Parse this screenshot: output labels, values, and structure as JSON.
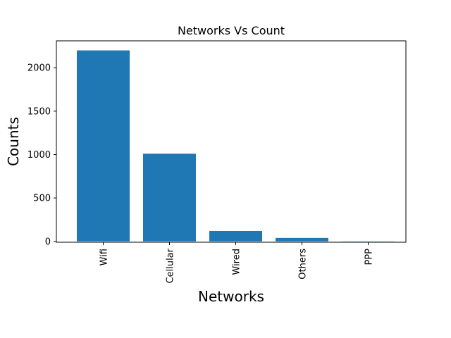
{
  "chart_data": {
    "type": "bar",
    "title": "Networks Vs Count",
    "xlabel": "Networks",
    "ylabel": "Counts",
    "categories": [
      "Wifi",
      "Cellular",
      "Wired",
      "Others",
      "PPP"
    ],
    "values": [
      2200,
      1010,
      120,
      40,
      2
    ],
    "ylim": [
      -10,
      2310
    ],
    "yticks": [
      0,
      500,
      1000,
      1500,
      2000
    ],
    "grid": false,
    "bar_color": "#1f77b4"
  }
}
